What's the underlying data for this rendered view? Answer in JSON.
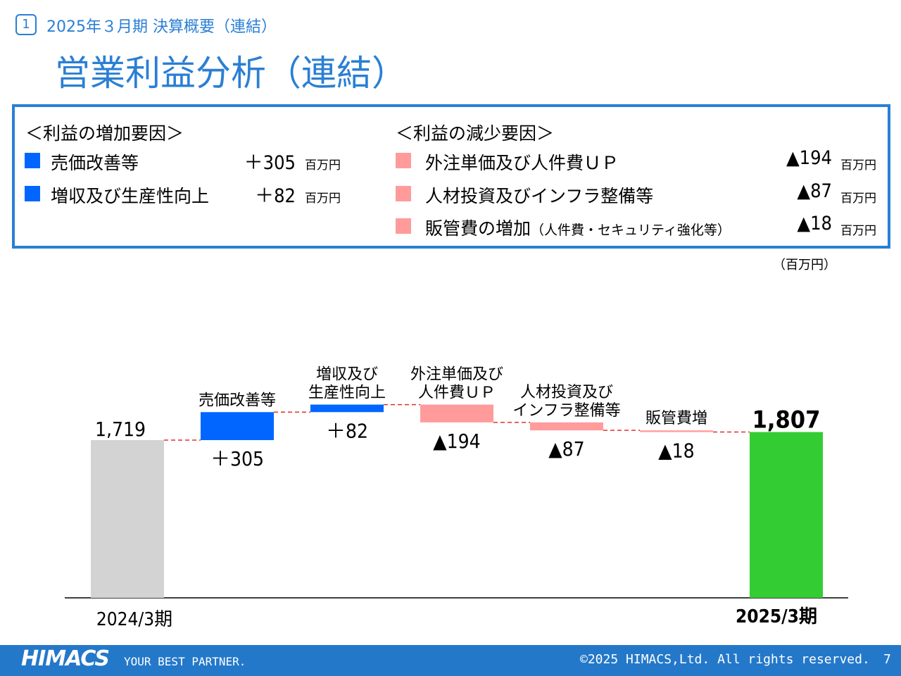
{
  "header": {
    "section_num": "1",
    "breadcrumb": "2025年３月期 決算概要（連結）",
    "title": "営業利益分析（連結）"
  },
  "summary": {
    "increase": {
      "heading": "＜利益の増加要因＞",
      "items": [
        {
          "label": "売価改善等",
          "value": "＋305",
          "unit": "百万円"
        },
        {
          "label": "増収及び生産性向上",
          "value": "＋82",
          "unit": "百万円"
        }
      ]
    },
    "decrease": {
      "heading": "＜利益の減少要因＞",
      "items": [
        {
          "label": "外注単価及び人件費ＵＰ",
          "note": "",
          "value": "▲194",
          "unit": "百万円"
        },
        {
          "label": "人材投資及びインフラ整備等",
          "note": "",
          "value": "▲87",
          "unit": "百万円"
        },
        {
          "label": "販管費の増加",
          "note": "（人件費・セキュリティ強化等）",
          "value": "▲18",
          "unit": "百万円"
        }
      ]
    }
  },
  "unit_note": "（百万円）",
  "colors": {
    "accent": "#2a7fd4",
    "increase": "#0066ff",
    "decrease": "#ff9b9b",
    "start": "#d3d3d3",
    "end": "#33cc33",
    "connector": "#e03030"
  },
  "chart_data": {
    "type": "bar",
    "subtype": "waterfall",
    "ylim": [
      0,
      2320
    ],
    "steps": [
      {
        "kind": "start",
        "label": "2024/3期",
        "value": 1719,
        "value_label": "1,719"
      },
      {
        "kind": "increase",
        "label": "売価改善等",
        "value": 305,
        "value_label": "＋305"
      },
      {
        "kind": "increase",
        "label": "増収及び\n生産性向上",
        "value": 82,
        "value_label": "＋82"
      },
      {
        "kind": "decrease",
        "label": "外注単価及び\n人件費ＵＰ",
        "value": -194,
        "value_label": "▲194"
      },
      {
        "kind": "decrease",
        "label": "人材投資及び\nインフラ整備等",
        "value": -87,
        "value_label": "▲87"
      },
      {
        "kind": "decrease",
        "label": "販管費増",
        "value": -18,
        "value_label": "▲18"
      },
      {
        "kind": "end",
        "label": "2025/3期",
        "value": 1807,
        "value_label": "1,807"
      }
    ]
  },
  "footer": {
    "logo": "HIMACS",
    "tagline": "YOUR BEST PARTNER.",
    "copyright": "©2025 HIMACS,Ltd. All rights reserved.",
    "page": "7"
  }
}
